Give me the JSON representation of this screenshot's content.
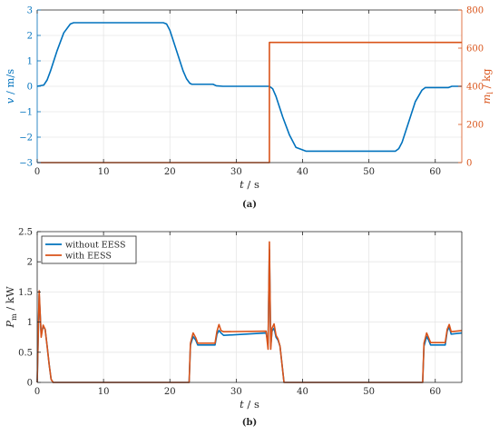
{
  "colors": {
    "blue": "#0072BD",
    "orange": "#D95319",
    "axis": "#262626",
    "grid": "#e6e6e6"
  },
  "chart_data": [
    {
      "type": "line",
      "caption": "(a)",
      "xlabel_var": "t",
      "xlabel_unit": " / s",
      "ylabel_left_var": "v",
      "ylabel_left_unit": " / m/s",
      "ylabel_right_var": "m",
      "ylabel_right_sub": "l",
      "ylabel_right_unit": " / kg",
      "xlim": [
        0,
        64
      ],
      "ylim": [
        -3,
        3
      ],
      "y2lim": [
        0,
        800
      ],
      "xticks": [
        0,
        10,
        20,
        30,
        40,
        50,
        60
      ],
      "yticks": [
        -3,
        -2,
        -1,
        0,
        1,
        2,
        3
      ],
      "y2ticks": [
        0,
        200,
        400,
        600,
        800
      ],
      "grid": true,
      "series": [
        {
          "axis": "left",
          "color": "blue",
          "x": [
            0,
            1,
            1.5,
            2,
            3,
            4,
            5,
            5.5,
            19,
            19.5,
            20,
            21,
            22,
            22.5,
            23,
            23.3,
            26.5,
            27,
            28,
            35,
            35.5,
            36,
            37,
            38,
            39,
            40,
            40.5,
            54,
            54.5,
            55,
            56,
            57,
            58,
            58.5,
            62,
            62.5,
            64
          ],
          "y": [
            0,
            0.05,
            0.25,
            0.6,
            1.4,
            2.1,
            2.45,
            2.5,
            2.5,
            2.45,
            2.2,
            1.4,
            0.6,
            0.3,
            0.12,
            0.08,
            0.08,
            0.02,
            0,
            0,
            -0.1,
            -0.4,
            -1.2,
            -1.9,
            -2.4,
            -2.5,
            -2.55,
            -2.55,
            -2.45,
            -2.2,
            -1.4,
            -0.6,
            -0.15,
            -0.05,
            -0.05,
            0,
            0
          ]
        },
        {
          "axis": "right",
          "color": "orange",
          "x": [
            0,
            35,
            35,
            64
          ],
          "y": [
            0,
            0,
            630,
            630
          ]
        }
      ]
    },
    {
      "type": "line",
      "caption": "(b)",
      "xlabel_var": "t",
      "xlabel_unit": " / s",
      "ylabel_var": "P",
      "ylabel_sub": "m",
      "ylabel_unit": " / kW",
      "xlim": [
        0,
        64
      ],
      "ylim": [
        0,
        2.5
      ],
      "xticks": [
        0,
        10,
        20,
        30,
        40,
        50,
        60
      ],
      "yticks": [
        0,
        0.5,
        1,
        1.5,
        2,
        2.5
      ],
      "grid": true,
      "legend": {
        "position": "top-left",
        "entries": [
          "without EESS",
          "with EESS"
        ]
      },
      "series": [
        {
          "name": "without EESS",
          "color": "blue",
          "x": [
            0,
            0.3,
            0.6,
            0.9,
            1.2,
            1.5,
            1.8,
            2.1,
            2.4,
            22.9,
            23.1,
            23.5,
            23.9,
            24.2,
            24.5,
            26.8,
            27.1,
            27.4,
            27.7,
            28.1,
            34.5,
            34.8,
            35.0,
            35.2,
            35.4,
            35.7,
            36.0,
            36.3,
            36.6,
            36.9,
            37.2,
            58.1,
            58.3,
            58.7,
            59.0,
            59.3,
            59.6,
            61.5,
            61.8,
            62.1,
            62.4,
            64
          ],
          "y": [
            0,
            1.45,
            0.8,
            0.93,
            0.88,
            0.6,
            0.3,
            0.05,
            0,
            0,
            0.62,
            0.76,
            0.7,
            0.62,
            0.62,
            0.62,
            0.8,
            0.86,
            0.82,
            0.78,
            0.82,
            0.65,
            2.2,
            0.6,
            0.85,
            0.9,
            0.75,
            0.7,
            0.6,
            0.3,
            0,
            0,
            0.6,
            0.76,
            0.7,
            0.62,
            0.62,
            0.62,
            0.85,
            0.92,
            0.8,
            0.82
          ]
        },
        {
          "name": "with EESS",
          "color": "orange",
          "x": [
            0,
            0.3,
            0.6,
            0.9,
            1.2,
            1.5,
            1.8,
            2.1,
            2.4,
            22.9,
            23.1,
            23.5,
            23.9,
            24.2,
            24.5,
            26.8,
            27.1,
            27.4,
            27.7,
            28.1,
            34.5,
            34.8,
            35.0,
            35.2,
            35.4,
            35.7,
            36.0,
            36.3,
            36.6,
            36.9,
            37.2,
            58.1,
            58.3,
            58.7,
            59.0,
            59.3,
            59.6,
            61.5,
            61.8,
            62.1,
            62.4,
            64
          ],
          "y": [
            0,
            1.52,
            0.75,
            0.95,
            0.88,
            0.6,
            0.3,
            0.05,
            0,
            0,
            0.65,
            0.82,
            0.74,
            0.65,
            0.65,
            0.65,
            0.85,
            0.96,
            0.86,
            0.84,
            0.85,
            0.55,
            2.33,
            0.55,
            0.9,
            0.97,
            0.78,
            0.72,
            0.6,
            0.3,
            0,
            0,
            0.65,
            0.82,
            0.74,
            0.66,
            0.66,
            0.66,
            0.88,
            0.96,
            0.84,
            0.86
          ]
        }
      ]
    }
  ]
}
